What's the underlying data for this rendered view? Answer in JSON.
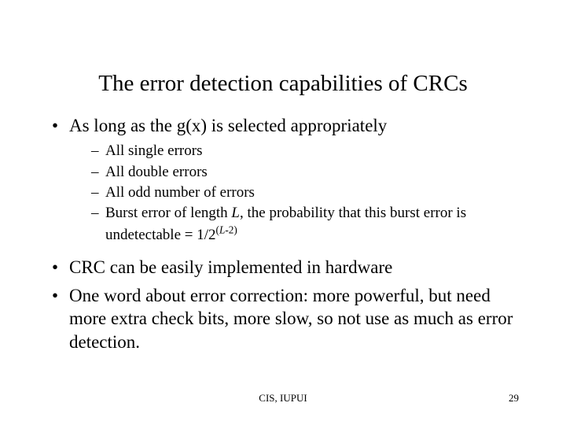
{
  "title": "The error detection capabilities of CRCs",
  "bullets": {
    "b1": "As long as the g(x) is selected appropriately",
    "sub1": "All single errors",
    "sub2": "All double errors",
    "sub3": "All odd number of errors",
    "sub4_pre": "Burst error of length ",
    "sub4_L": "L",
    "sub4_mid": ", the probability that this burst error is undetectable = 1/2",
    "sub4_exp_open": "(",
    "sub4_exp_L": "L",
    "sub4_exp_rest": "-2)",
    "b2": "CRC can be easily implemented in hardware",
    "b3": "One word about error correction: more powerful, but need more extra check bits, more slow, so not use as much as error detection."
  },
  "footer": {
    "center": "CIS, IUPUI",
    "page": "29"
  },
  "glyphs": {
    "bullet": "•",
    "dash": "–"
  }
}
